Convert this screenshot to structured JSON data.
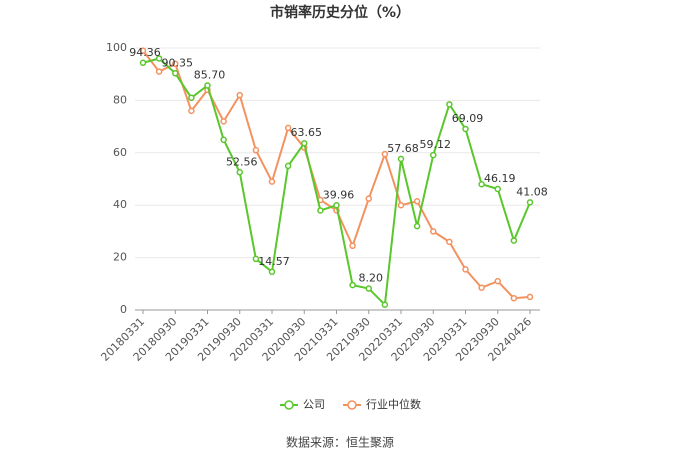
{
  "chart_data": {
    "type": "line",
    "title": "市销率历史分位（%）",
    "source": "数据来源：恒生聚源",
    "categories": [
      "20180331",
      null,
      "20180930",
      null,
      "20190331",
      null,
      "20190930",
      null,
      "20200331",
      null,
      "20200930",
      null,
      "20210331",
      null,
      "20210930",
      null,
      "20220331",
      null,
      "20220930",
      null,
      "20230331",
      null,
      "20230930",
      null,
      "20240426"
    ],
    "ylim": [
      0,
      100
    ],
    "yticks": [
      0,
      20,
      40,
      60,
      80,
      100
    ],
    "grid": true,
    "legend": "bottom",
    "series": [
      {
        "name": "公司",
        "color": "#5ac72c",
        "values": [
          94.36,
          96,
          90.35,
          81,
          85.7,
          65,
          52.56,
          19.5,
          14.57,
          55,
          63.65,
          38,
          39.96,
          9.5,
          8.2,
          2,
          57.68,
          32,
          59.12,
          78.5,
          69.09,
          48,
          46.19,
          26.5,
          41.08
        ],
        "value_labels": [
          "94.36",
          null,
          "90.35",
          null,
          "85.70",
          null,
          "52.56",
          null,
          "14.57",
          null,
          "63.65",
          null,
          "39.96",
          null,
          "8.20",
          null,
          "57.68",
          null,
          "59.12",
          null,
          "69.09",
          null,
          "46.19",
          null,
          "41.08"
        ]
      },
      {
        "name": "行业中位数",
        "color": "#f4925f",
        "values": [
          99,
          91,
          94,
          76,
          84,
          72,
          82,
          61,
          49,
          69.5,
          62,
          42,
          38,
          24.5,
          42.5,
          59.5,
          40,
          41.5,
          30,
          26,
          15.5,
          8.5,
          11,
          4.5,
          5
        ]
      }
    ]
  }
}
